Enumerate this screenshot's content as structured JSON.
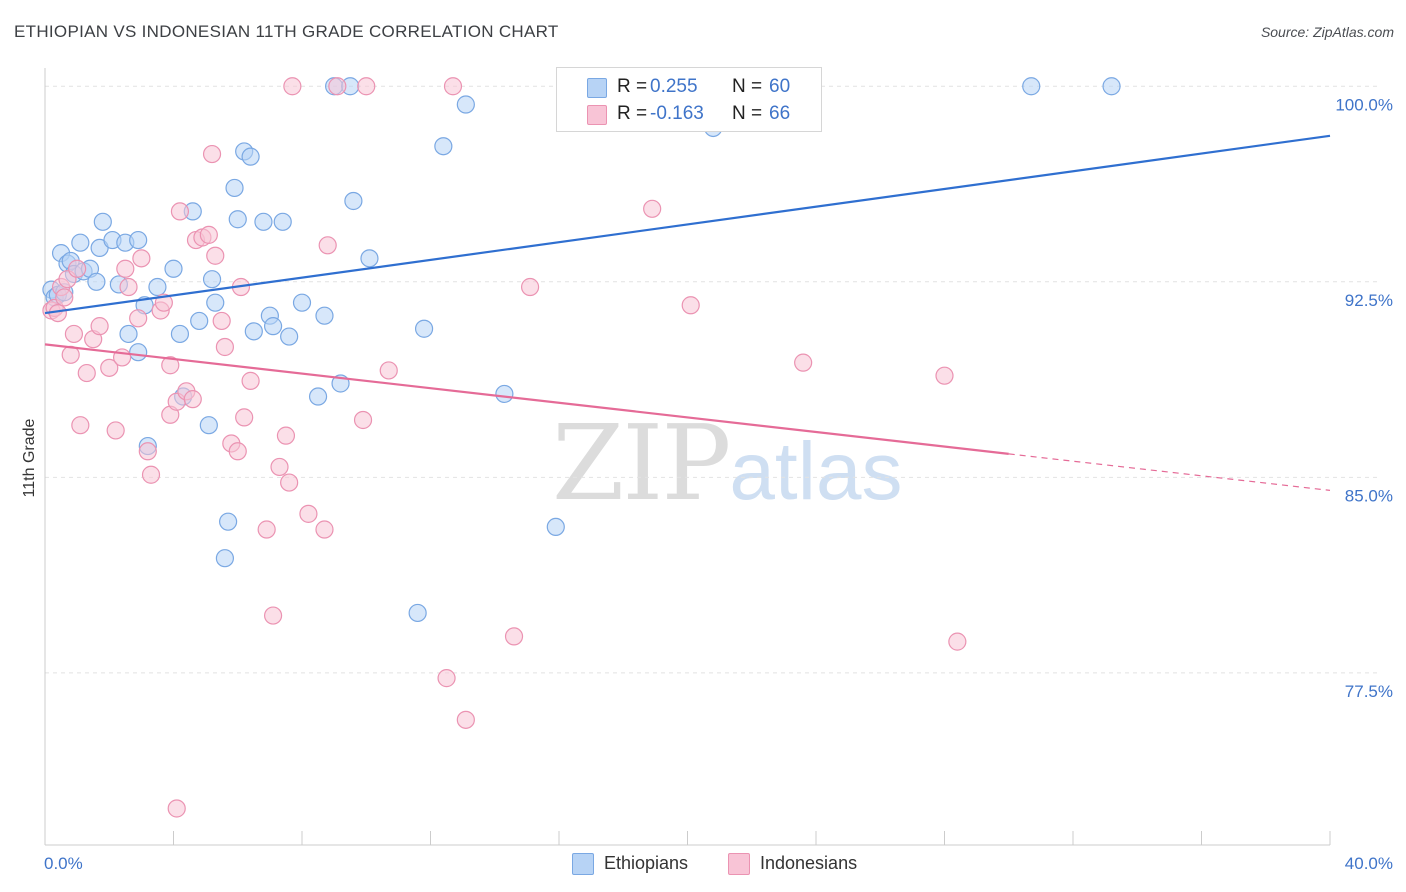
{
  "header": {
    "title": "ETHIOPIAN VS INDONESIAN 11TH GRADE CORRELATION CHART",
    "source": "Source: ZipAtlas.com"
  },
  "watermark": {
    "zip": "ZIP",
    "atlas": "atlas"
  },
  "legend": {
    "r_label": "R =",
    "n_label": "N =",
    "ethiopians": {
      "r": "0.255",
      "n": "60"
    },
    "indonesians": {
      "r": "-0.163",
      "n": "66"
    }
  },
  "bottom_legend": {
    "ethiopians": "Ethiopians",
    "indonesians": "Indonesians"
  },
  "colors": {
    "ethiopians_fill": "#b7d3f5",
    "ethiopians_stroke": "#7aa8e3",
    "ethiopians_line": "#2f6fd0",
    "indonesians_fill": "#f8c4d6",
    "indonesians_stroke": "#eb93b2",
    "indonesians_line": "#e56b97",
    "tick_label": "#3f74c9"
  },
  "chart_data": {
    "type": "scatter",
    "title": "ETHIOPIAN VS INDONESIAN 11TH GRADE CORRELATION CHART",
    "xlabel": "",
    "ylabel": "11th Grade",
    "xlim": [
      0,
      40
    ],
    "ylim": [
      70.9,
      100.7
    ],
    "x_tick_labels": [
      "0.0%",
      "40.0%"
    ],
    "y_ticks": [
      77.5,
      85.0,
      92.5,
      100.0
    ],
    "y_tick_labels": [
      "77.5%",
      "85.0%",
      "92.5%",
      "100.0%"
    ],
    "grid": true,
    "legend_position": "top-center",
    "series": [
      {
        "name": "Ethiopians",
        "r": 0.255,
        "n": 60,
        "trend": {
          "x": [
            0,
            40
          ],
          "y": [
            91.3,
            98.1
          ]
        },
        "points": [
          [
            0.2,
            92.2
          ],
          [
            0.3,
            91.9
          ],
          [
            0.4,
            92.0
          ],
          [
            0.5,
            93.6
          ],
          [
            0.6,
            92.1
          ],
          [
            0.7,
            93.2
          ],
          [
            0.8,
            93.3
          ],
          [
            0.9,
            92.8
          ],
          [
            1.1,
            94.0
          ],
          [
            1.2,
            92.9
          ],
          [
            1.4,
            93.0
          ],
          [
            1.6,
            92.5
          ],
          [
            1.7,
            93.8
          ],
          [
            1.8,
            94.8
          ],
          [
            2.1,
            94.1
          ],
          [
            2.3,
            92.4
          ],
          [
            2.5,
            94.0
          ],
          [
            2.6,
            90.5
          ],
          [
            2.9,
            89.8
          ],
          [
            2.9,
            94.1
          ],
          [
            3.1,
            91.6
          ],
          [
            3.2,
            86.2
          ],
          [
            3.5,
            92.3
          ],
          [
            4.0,
            93.0
          ],
          [
            4.2,
            90.5
          ],
          [
            4.3,
            88.1
          ],
          [
            4.6,
            95.2
          ],
          [
            4.8,
            91.0
          ],
          [
            5.1,
            87.0
          ],
          [
            5.3,
            91.7
          ],
          [
            5.2,
            92.6
          ],
          [
            5.6,
            81.9
          ],
          [
            5.7,
            83.3
          ],
          [
            5.9,
            96.1
          ],
          [
            6.0,
            94.9
          ],
          [
            6.2,
            97.5
          ],
          [
            6.4,
            97.3
          ],
          [
            6.5,
            90.6
          ],
          [
            6.8,
            94.8
          ],
          [
            7.0,
            91.2
          ],
          [
            7.1,
            90.8
          ],
          [
            7.4,
            94.8
          ],
          [
            7.6,
            90.4
          ],
          [
            8.0,
            91.7
          ],
          [
            8.5,
            88.1
          ],
          [
            8.7,
            91.2
          ],
          [
            9.0,
            100.0
          ],
          [
            9.2,
            88.6
          ],
          [
            9.5,
            100.0
          ],
          [
            9.6,
            95.6
          ],
          [
            10.1,
            93.4
          ],
          [
            11.6,
            79.8
          ],
          [
            11.8,
            90.7
          ],
          [
            12.4,
            97.7
          ],
          [
            13.1,
            99.3
          ],
          [
            14.3,
            88.2
          ],
          [
            15.9,
            83.1
          ],
          [
            20.8,
            98.4
          ],
          [
            30.7,
            100.0
          ],
          [
            33.2,
            100.0
          ]
        ]
      },
      {
        "name": "Indonesians",
        "r": -0.163,
        "n": 66,
        "trend": {
          "x": [
            0,
            30
          ],
          "y": [
            90.1,
            85.9
          ]
        },
        "trend_dashed": {
          "x": [
            30,
            40
          ],
          "y": [
            85.9,
            84.5
          ]
        },
        "points": [
          [
            0.2,
            91.4
          ],
          [
            0.3,
            91.5
          ],
          [
            0.4,
            91.3
          ],
          [
            0.5,
            92.3
          ],
          [
            0.6,
            91.9
          ],
          [
            0.7,
            92.6
          ],
          [
            0.8,
            89.7
          ],
          [
            0.9,
            90.5
          ],
          [
            1.0,
            93.0
          ],
          [
            1.1,
            87.0
          ],
          [
            1.3,
            89.0
          ],
          [
            1.5,
            90.3
          ],
          [
            1.7,
            90.8
          ],
          [
            2.0,
            89.2
          ],
          [
            2.2,
            86.8
          ],
          [
            2.4,
            89.6
          ],
          [
            2.5,
            93.0
          ],
          [
            2.6,
            92.3
          ],
          [
            2.9,
            91.1
          ],
          [
            3.0,
            93.4
          ],
          [
            3.2,
            86.0
          ],
          [
            3.3,
            85.1
          ],
          [
            3.6,
            91.4
          ],
          [
            3.7,
            91.7
          ],
          [
            3.9,
            87.4
          ],
          [
            3.9,
            89.3
          ],
          [
            4.1,
            87.9
          ],
          [
            4.2,
            95.2
          ],
          [
            4.4,
            88.3
          ],
          [
            4.6,
            88.0
          ],
          [
            4.7,
            94.1
          ],
          [
            4.9,
            94.2
          ],
          [
            5.1,
            94.3
          ],
          [
            5.2,
            97.4
          ],
          [
            5.3,
            93.5
          ],
          [
            5.5,
            91.0
          ],
          [
            5.6,
            90.0
          ],
          [
            5.8,
            86.3
          ],
          [
            6.0,
            86.0
          ],
          [
            6.1,
            92.3
          ],
          [
            6.2,
            87.3
          ],
          [
            6.4,
            88.7
          ],
          [
            6.9,
            83.0
          ],
          [
            7.1,
            79.7
          ],
          [
            7.3,
            85.4
          ],
          [
            7.5,
            86.6
          ],
          [
            7.6,
            84.8
          ],
          [
            7.7,
            100.0
          ],
          [
            8.2,
            83.6
          ],
          [
            8.7,
            83.0
          ],
          [
            8.8,
            93.9
          ],
          [
            9.1,
            100.0
          ],
          [
            9.9,
            87.2
          ],
          [
            10.0,
            100.0
          ],
          [
            10.7,
            89.1
          ],
          [
            12.5,
            77.3
          ],
          [
            12.7,
            100.0
          ],
          [
            13.1,
            75.7
          ],
          [
            14.6,
            78.9
          ],
          [
            15.1,
            92.3
          ],
          [
            18.9,
            95.3
          ],
          [
            20.1,
            91.6
          ],
          [
            23.6,
            89.4
          ],
          [
            28.0,
            88.9
          ],
          [
            28.4,
            78.7
          ],
          [
            4.1,
            72.3
          ]
        ]
      }
    ]
  }
}
